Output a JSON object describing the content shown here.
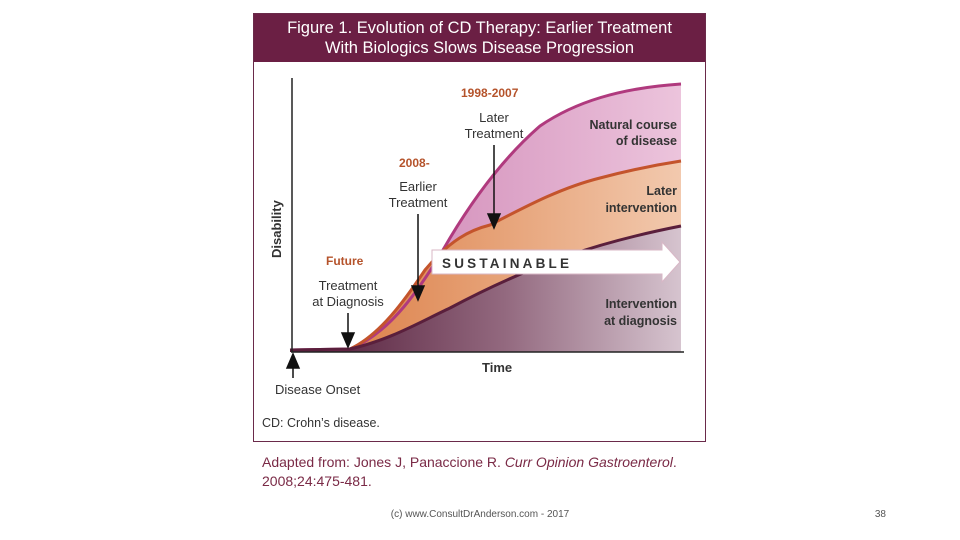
{
  "figure": {
    "title_line1": "Figure 1. Evolution of CD Therapy: Earlier Treatment",
    "title_line2": "With Biologics Slows Disease Progression",
    "y_axis_label": "Disability",
    "x_axis_label": "Time",
    "disease_onset": "Disease Onset",
    "footnote": "CD: Crohn’s disease.",
    "eras": {
      "era_1998": "1998-2007",
      "era_2008": "2008-",
      "era_future": "Future"
    },
    "treatments": {
      "later_line1": "Later",
      "later_line2": "Treatment",
      "earlier_line1": "Earlier",
      "earlier_line2": "Treatment",
      "diag_line1": "Treatment",
      "diag_line2": "at Diagnosis"
    },
    "curves": {
      "natural_line1": "Natural course",
      "natural_line2": "of disease",
      "later_line1": "Later",
      "later_line2": "intervention",
      "diag_line1": "Intervention",
      "diag_line2": "at diagnosis"
    },
    "arrow_text": "SUSTAINABLE",
    "colors": {
      "header": "#6b1f44",
      "natural": "#b03a7e",
      "later": "#c4542c",
      "diagnosis": "#5a1f3c",
      "era_text": "#b5532b"
    }
  },
  "citation": {
    "prefix": "Adapted from: Jones J, Panaccione R. ",
    "journal": "Curr Opinion Gastroenterol",
    "suffix": ".",
    "line2": "2008;24:475-481."
  },
  "footer": {
    "copyright": "(c) www.ConsultDrAnderson.com - 2017",
    "page_number": "38"
  }
}
